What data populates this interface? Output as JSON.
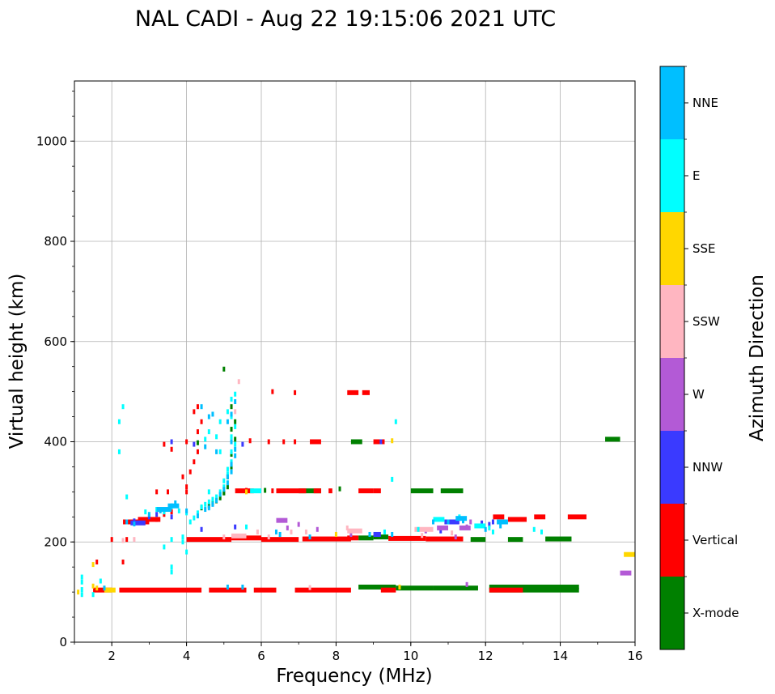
{
  "chart_data": {
    "type": "scatter",
    "title": "NAL CADI - Aug 22 19:15:06 2021 UTC",
    "xlabel": "Frequency (MHz)",
    "ylabel": "Virtual height (km)",
    "xlim": [
      1,
      16
    ],
    "ylim": [
      0,
      1120
    ],
    "xticks": [
      2,
      4,
      6,
      8,
      10,
      12,
      14,
      16
    ],
    "yticks": [
      0,
      200,
      400,
      600,
      800,
      1000
    ],
    "grid": true,
    "colorbar": {
      "label": "Azimuth Direction",
      "categories": [
        "X-mode",
        "Vertical",
        "NNW",
        "W",
        "SSW",
        "SSE",
        "E",
        "NNE"
      ],
      "colors": [
        "#008000",
        "#ff0000",
        "#3a3aff",
        "#b35ad6",
        "#ffb6c1",
        "#ffd700",
        "#00ffff",
        "#00bfff"
      ]
    },
    "series": [
      {
        "name": "X-mode",
        "color": "#008000",
        "segments": [
          [
            8.6,
            9.0,
            208
          ],
          [
            9.0,
            9.4,
            210
          ],
          [
            11.6,
            12.0,
            205
          ],
          [
            12.6,
            13.0,
            205
          ],
          [
            13.6,
            14.3,
            206
          ],
          [
            7.0,
            7.6,
            302
          ],
          [
            10.0,
            10.6,
            302
          ],
          [
            10.8,
            11.4,
            302
          ],
          [
            8.4,
            8.7,
            400
          ],
          [
            15.2,
            15.6,
            405
          ],
          [
            8.6,
            9.6,
            110
          ],
          [
            9.6,
            10.6,
            108
          ],
          [
            10.6,
            11.8,
            108
          ],
          [
            12.1,
            14.5,
            110
          ],
          [
            12.1,
            14.5,
            104
          ]
        ],
        "points": [
          [
            4.4,
            268
          ],
          [
            4.6,
            272
          ],
          [
            4.7,
            278
          ],
          [
            4.8,
            282
          ],
          [
            4.9,
            288
          ],
          [
            5.0,
            298
          ],
          [
            5.1,
            310
          ],
          [
            5.1,
            330
          ],
          [
            5.2,
            350
          ],
          [
            5.2,
            375
          ],
          [
            5.3,
            405
          ],
          [
            5.2,
            425
          ],
          [
            5.3,
            440
          ],
          [
            5.2,
            470
          ],
          [
            4.3,
            398
          ],
          [
            5.0,
            298
          ],
          [
            6.1,
            303
          ],
          [
            8.1,
            306
          ],
          [
            5.0,
            545
          ]
        ]
      },
      {
        "name": "Vertical",
        "color": "#ff0000",
        "segments": [
          [
            1.5,
            2.0,
            104
          ],
          [
            2.2,
            4.4,
            104
          ],
          [
            4.6,
            5.6,
            104
          ],
          [
            5.8,
            6.4,
            104
          ],
          [
            6.9,
            8.4,
            104
          ],
          [
            9.2,
            9.6,
            104
          ],
          [
            12.1,
            13.0,
            104
          ],
          [
            2.3,
            3.0,
            240
          ],
          [
            2.7,
            3.3,
            245
          ],
          [
            12.2,
            12.5,
            250
          ],
          [
            12.6,
            13.1,
            245
          ],
          [
            13.3,
            13.6,
            250
          ],
          [
            14.2,
            14.7,
            250
          ],
          [
            4.0,
            5.2,
            205
          ],
          [
            5.2,
            6.0,
            208
          ],
          [
            6.0,
            7.0,
            205
          ],
          [
            7.1,
            8.4,
            206
          ],
          [
            8.3,
            8.6,
            208
          ],
          [
            9.4,
            10.4,
            207
          ],
          [
            10.4,
            11.4,
            206
          ],
          [
            6.4,
            7.2,
            302
          ],
          [
            7.4,
            7.6,
            302
          ],
          [
            7.8,
            7.9,
            302
          ],
          [
            8.6,
            9.0,
            302
          ],
          [
            9.0,
            9.2,
            302
          ],
          [
            5.3,
            5.8,
            302
          ],
          [
            7.3,
            7.6,
            400
          ],
          [
            9.0,
            9.3,
            400
          ],
          [
            8.3,
            8.6,
            498
          ],
          [
            8.7,
            8.9,
            498
          ]
        ],
        "points": [
          [
            2.5,
            240
          ],
          [
            2.8,
            242
          ],
          [
            3.2,
            245
          ],
          [
            3.4,
            255
          ],
          [
            3.6,
            260
          ],
          [
            3.5,
            300
          ],
          [
            3.2,
            300
          ],
          [
            4.0,
            300
          ],
          [
            4.0,
            310
          ],
          [
            3.9,
            330
          ],
          [
            4.1,
            340
          ],
          [
            4.2,
            360
          ],
          [
            4.0,
            400
          ],
          [
            4.3,
            380
          ],
          [
            3.4,
            395
          ],
          [
            3.6,
            385
          ],
          [
            4.3,
            420
          ],
          [
            4.4,
            440
          ],
          [
            4.2,
            460
          ],
          [
            4.3,
            470
          ],
          [
            6.2,
            400
          ],
          [
            6.6,
            400
          ],
          [
            6.9,
            400
          ],
          [
            5.7,
            402
          ],
          [
            6.9,
            498
          ],
          [
            6.3,
            302
          ],
          [
            6.3,
            500
          ],
          [
            1.6,
            160
          ],
          [
            2.3,
            160
          ],
          [
            2.4,
            205
          ],
          [
            2.0,
            205
          ],
          [
            5.6,
            303
          ]
        ]
      },
      {
        "name": "NNW",
        "color": "#3a3aff",
        "segments": [
          [
            2.5,
            2.9,
            238
          ],
          [
            9.0,
            9.2,
            215
          ],
          [
            10.9,
            11.3,
            240
          ]
        ],
        "points": [
          [
            2.6,
            242
          ],
          [
            3.0,
            250
          ],
          [
            3.2,
            255
          ],
          [
            3.6,
            250
          ],
          [
            4.4,
            225
          ],
          [
            5.3,
            230
          ],
          [
            3.6,
            400
          ],
          [
            4.2,
            395
          ],
          [
            9.2,
            400
          ],
          [
            11.9,
            238
          ],
          [
            12.1,
            235
          ],
          [
            12.2,
            240
          ],
          [
            10.8,
            222
          ],
          [
            5.5,
            395
          ]
        ]
      },
      {
        "name": "W",
        "color": "#b35ad6",
        "segments": [
          [
            6.4,
            6.7,
            243
          ],
          [
            10.7,
            11.0,
            228
          ],
          [
            11.3,
            11.6,
            228
          ],
          [
            15.6,
            15.9,
            138
          ]
        ],
        "points": [
          [
            6.7,
            228
          ],
          [
            7.0,
            235
          ],
          [
            7.5,
            225
          ],
          [
            8.4,
            215
          ],
          [
            10.4,
            222
          ],
          [
            11.2,
            210
          ],
          [
            11.5,
            230
          ],
          [
            11.3,
            247
          ],
          [
            11.6,
            240
          ],
          [
            11.5,
            115
          ]
        ]
      },
      {
        "name": "SSW",
        "color": "#ffb6c1",
        "segments": [
          [
            8.3,
            8.7,
            222
          ],
          [
            10.1,
            10.6,
            225
          ],
          [
            5.2,
            5.6,
            212
          ]
        ],
        "points": [
          [
            2.6,
            205
          ],
          [
            2.3,
            203
          ],
          [
            6.2,
            210
          ],
          [
            5.9,
            220
          ],
          [
            6.8,
            220
          ],
          [
            7.2,
            220
          ],
          [
            8.3,
            228
          ],
          [
            10.3,
            213
          ],
          [
            11.1,
            218
          ],
          [
            7.3,
            109
          ],
          [
            5.0,
            210
          ],
          [
            3.9,
            210
          ],
          [
            5.4,
            520
          ],
          [
            5.3,
            460
          ]
        ]
      },
      {
        "name": "SSE",
        "color": "#ffd700",
        "segments": [
          [
            15.7,
            16.0,
            175
          ],
          [
            1.8,
            2.1,
            104
          ]
        ],
        "points": [
          [
            1.1,
            100
          ],
          [
            1.5,
            112
          ],
          [
            1.6,
            108
          ],
          [
            1.5,
            155
          ],
          [
            9.5,
            402
          ],
          [
            8.0,
            215
          ],
          [
            5.6,
            300
          ],
          [
            9.7,
            110
          ]
        ]
      },
      {
        "name": "E",
        "color": "#00ffff",
        "segments": [
          [
            10.6,
            10.9,
            245
          ],
          [
            11.7,
            12.0,
            232
          ],
          [
            5.7,
            6.0,
            302
          ]
        ],
        "points": [
          [
            1.2,
            95
          ],
          [
            1.2,
            105
          ],
          [
            1.2,
            120
          ],
          [
            1.2,
            130
          ],
          [
            1.5,
            95
          ],
          [
            1.7,
            122
          ],
          [
            2.2,
            380
          ],
          [
            2.2,
            440
          ],
          [
            2.3,
            470
          ],
          [
            2.4,
            290
          ],
          [
            2.9,
            260
          ],
          [
            3.2,
            265
          ],
          [
            3.4,
            260
          ],
          [
            3.6,
            270
          ],
          [
            3.8,
            262
          ],
          [
            4.0,
            258
          ],
          [
            4.1,
            240
          ],
          [
            4.2,
            248
          ],
          [
            4.3,
            258
          ],
          [
            4.4,
            270
          ],
          [
            4.5,
            275
          ],
          [
            4.6,
            280
          ],
          [
            4.7,
            285
          ],
          [
            4.8,
            290
          ],
          [
            4.9,
            300
          ],
          [
            5.0,
            310
          ],
          [
            5.0,
            322
          ],
          [
            5.1,
            335
          ],
          [
            5.1,
            345
          ],
          [
            5.2,
            360
          ],
          [
            5.2,
            380
          ],
          [
            5.3,
            395
          ],
          [
            5.2,
            410
          ],
          [
            5.3,
            430
          ],
          [
            5.2,
            450
          ],
          [
            5.1,
            460
          ],
          [
            5.2,
            485
          ],
          [
            5.3,
            495
          ],
          [
            4.8,
            410
          ],
          [
            4.9,
            440
          ],
          [
            4.0,
            180
          ],
          [
            3.9,
            200
          ],
          [
            3.9,
            210
          ],
          [
            3.6,
            205
          ],
          [
            3.4,
            190
          ],
          [
            3.6,
            150
          ],
          [
            3.6,
            140
          ],
          [
            9.6,
            440
          ],
          [
            9.5,
            325
          ],
          [
            9.3,
            220
          ],
          [
            10.2,
            225
          ],
          [
            11.3,
            250
          ],
          [
            12.2,
            220
          ],
          [
            12.1,
            228
          ],
          [
            13.3,
            225
          ],
          [
            13.5,
            220
          ],
          [
            5.6,
            230
          ],
          [
            4.6,
            300
          ],
          [
            4.6,
            420
          ],
          [
            4.5,
            405
          ],
          [
            4.9,
            380
          ]
        ]
      },
      {
        "name": "NNE",
        "color": "#00bfff",
        "segments": [
          [
            3.2,
            3.6,
            265
          ],
          [
            3.5,
            3.8,
            272
          ],
          [
            11.2,
            11.5,
            247
          ],
          [
            12.3,
            12.6,
            240
          ]
        ],
        "points": [
          [
            2.4,
            240
          ],
          [
            2.6,
            236
          ],
          [
            3.0,
            255
          ],
          [
            3.3,
            262
          ],
          [
            3.6,
            272
          ],
          [
            3.7,
            278
          ],
          [
            4.0,
            262
          ],
          [
            4.3,
            252
          ],
          [
            4.5,
            265
          ],
          [
            4.6,
            268
          ],
          [
            4.7,
            275
          ],
          [
            4.8,
            283
          ],
          [
            4.9,
            295
          ],
          [
            5.0,
            305
          ],
          [
            5.1,
            318
          ],
          [
            5.1,
            330
          ],
          [
            5.2,
            340
          ],
          [
            5.2,
            355
          ],
          [
            5.3,
            372
          ],
          [
            5.3,
            385
          ],
          [
            5.2,
            400
          ],
          [
            5.1,
            440
          ],
          [
            5.2,
            455
          ],
          [
            5.3,
            480
          ],
          [
            4.7,
            455
          ],
          [
            4.6,
            450
          ],
          [
            4.4,
            470
          ],
          [
            4.5,
            390
          ],
          [
            4.8,
            380
          ],
          [
            5.5,
            110
          ],
          [
            5.1,
            110
          ],
          [
            1.8,
            108
          ],
          [
            11.0,
            240
          ],
          [
            11.4,
            242
          ],
          [
            12.0,
            225
          ],
          [
            12.4,
            232
          ],
          [
            10.6,
            240
          ],
          [
            6.5,
            215
          ],
          [
            7.3,
            210
          ],
          [
            8.9,
            215
          ],
          [
            9.5,
            215
          ],
          [
            6.4,
            220
          ]
        ]
      }
    ]
  }
}
